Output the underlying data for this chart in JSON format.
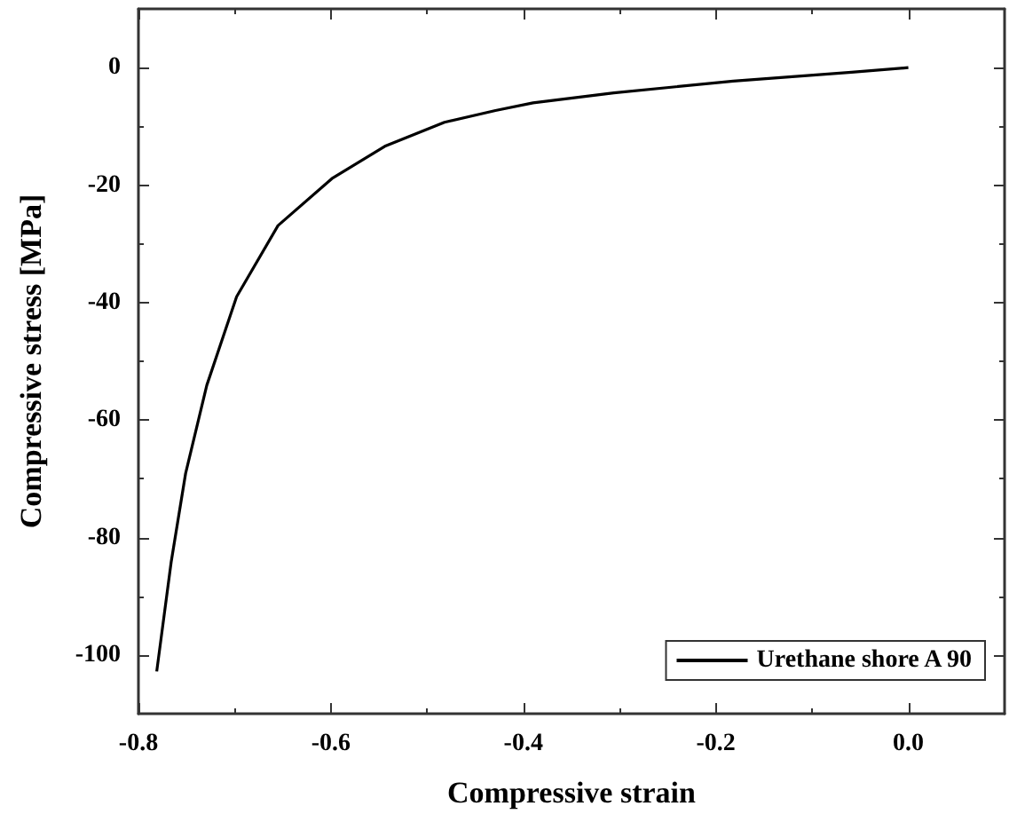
{
  "chart_data": {
    "type": "line",
    "xlabel": "Compressive strain",
    "ylabel": "Compressive stress [MPa]",
    "xlim": [
      -0.8,
      0.1
    ],
    "xticks": [
      -0.8,
      {
        "value": -0.6,
        "label": "-0.6"
      },
      {
        "value": -0.4,
        "label": "-0.4"
      },
      {
        "value": -0.2,
        "label": "-0.2"
      },
      {
        "value": 0,
        "label": "0.0"
      }
    ],
    "ylim": [
      -110,
      10
    ],
    "yticks": [
      -100,
      -80,
      -60,
      -40,
      -20,
      0
    ],
    "legend": "bottom right",
    "grid": false,
    "marker": "none",
    "line_style": "solid",
    "series": [
      {
        "name": "Urethane shore A 90",
        "color": "#000000",
        "x": [
          -0.781,
          -0.766,
          -0.751,
          -0.729,
          -0.698,
          -0.655,
          -0.599,
          -0.544,
          -0.482,
          -0.429,
          -0.39,
          -0.306,
          -0.182,
          -0.059,
          0
        ],
        "values": [
          -102.8,
          -84.2,
          -69.1,
          -54.1,
          -39.0,
          -26.9,
          -18.9,
          -13.4,
          -9.3,
          -7.3,
          -6.0,
          -4.3,
          -2.3,
          -0.8,
          0
        ]
      }
    ]
  }
}
